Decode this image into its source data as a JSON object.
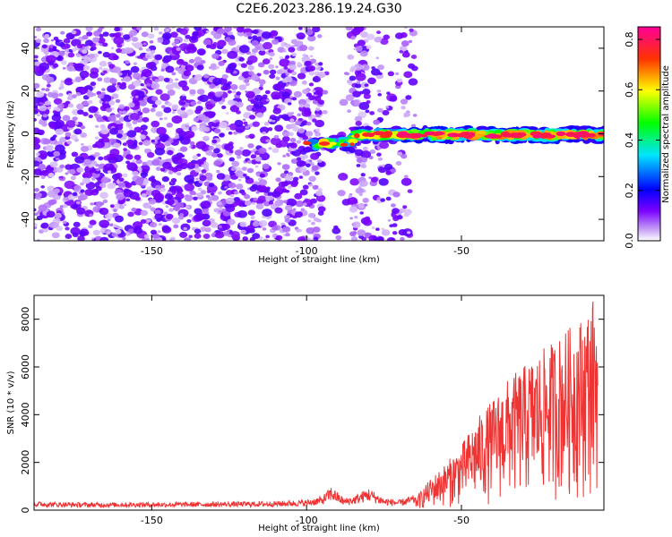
{
  "title": "C2E6.2023.286.19.24.G30",
  "chart_data": [
    {
      "type": "heatmap",
      "xlabel": "Height of straight line (km)",
      "ylabel": "Frequency (Hz)",
      "xlim": [
        -188,
        -4
      ],
      "ylim": [
        -50,
        50
      ],
      "x_ticks": [
        -150,
        -100,
        -50
      ],
      "y_ticks": [
        -40,
        -20,
        0,
        20,
        40
      ],
      "colorbar": {
        "label": "Normalized spectral amplitude",
        "range": [
          0,
          0.85
        ],
        "ticks": [
          0.0,
          0.2,
          0.4,
          0.6,
          0.8
        ],
        "colormap": [
          "#8b00ff",
          "#0000ff",
          "#00ffff",
          "#00ff00",
          "#ffff00",
          "#ff0000",
          "#ff00aa"
        ]
      },
      "features": [
        {
          "name": "broadband noise",
          "x_range": [
            -188,
            -65
          ],
          "y_range": [
            -50,
            50
          ],
          "amplitude": 0.05
        },
        {
          "name": "signal track",
          "x_range": [
            -100,
            -4
          ],
          "frequency_start": -6,
          "frequency_end": 0,
          "peak_amplitude": 0.85
        }
      ]
    },
    {
      "type": "line",
      "xlabel": "Height of straight line (km)",
      "ylabel": "SNR (10 * v/v)",
      "xlim": [
        -188,
        -4
      ],
      "ylim": [
        0,
        9000
      ],
      "x_ticks": [
        -150,
        -100,
        -50
      ],
      "y_ticks": [
        0,
        2000,
        4000,
        6000,
        8000
      ],
      "series": [
        {
          "color": "#ee3333",
          "x": [
            -188,
            -170,
            -150,
            -130,
            -110,
            -100,
            -95,
            -92,
            -88,
            -85,
            -80,
            -75,
            -70,
            -65,
            -60,
            -55,
            -50,
            -45,
            -40,
            -35,
            -30,
            -25,
            -20,
            -15,
            -10,
            -6
          ],
          "y": [
            250,
            220,
            230,
            240,
            260,
            300,
            400,
            700,
            350,
            400,
            650,
            350,
            300,
            450,
            1200,
            1800,
            2500,
            3500,
            4200,
            5000,
            5500,
            6000,
            6500,
            7000,
            7500,
            8500
          ]
        }
      ]
    }
  ]
}
